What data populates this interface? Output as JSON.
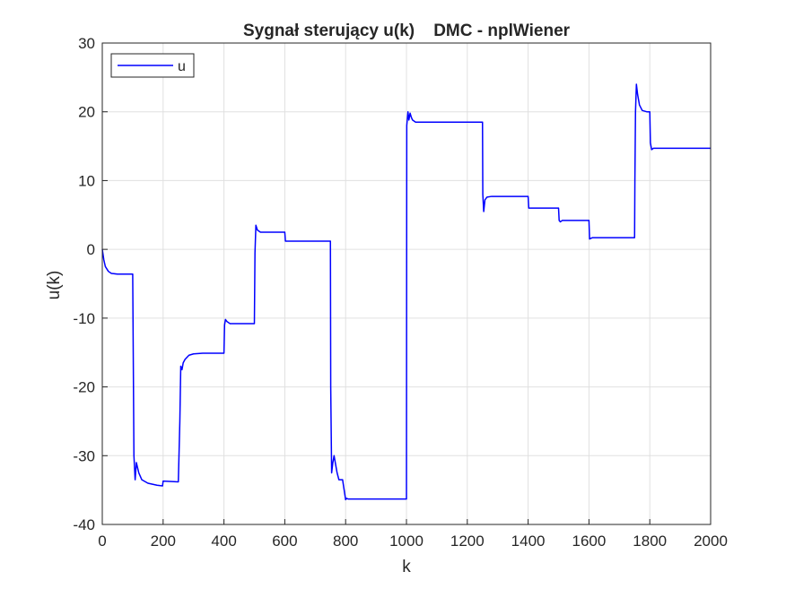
{
  "chart_data": {
    "type": "line",
    "title": "Sygnał sterujący u(k)    DMC - nplWiener",
    "xlabel": "k",
    "ylabel": "u(k)",
    "xlim": [
      0,
      2000
    ],
    "ylim": [
      -40,
      30
    ],
    "xticks": [
      0,
      200,
      400,
      600,
      800,
      1000,
      1200,
      1400,
      1600,
      1800,
      2000
    ],
    "yticks": [
      -40,
      -30,
      -20,
      -10,
      0,
      10,
      20,
      30
    ],
    "grid": true,
    "legend_position": "top-left",
    "colors": {
      "series": "#0000ff",
      "grid": "#e0e0e0",
      "axis": "#262626"
    },
    "series": [
      {
        "name": "u",
        "x": [
          0,
          5,
          10,
          20,
          30,
          50,
          100,
          101,
          104,
          108,
          112,
          120,
          130,
          150,
          180,
          198,
          200,
          250,
          255,
          258,
          262,
          266,
          272,
          285,
          300,
          330,
          350,
          400,
          402,
          405,
          410,
          420,
          450,
          500,
          502,
          505,
          510,
          520,
          600,
          602,
          605,
          750,
          751,
          754,
          758,
          762,
          766,
          772,
          778,
          782,
          790,
          800,
          803,
          808,
          830,
          1000,
          1001,
          1005,
          1008,
          1012,
          1016,
          1020,
          1030,
          1060,
          1100,
          1250,
          1251,
          1254,
          1258,
          1265,
          1280,
          1300,
          1400,
          1402,
          1410,
          1500,
          1502,
          1506,
          1512,
          1600,
          1602,
          1606,
          1612,
          1700,
          1750,
          1751,
          1753,
          1756,
          1760,
          1766,
          1775,
          1790,
          1800,
          1802,
          1806,
          1812,
          1830,
          1870,
          2000
        ],
        "y": [
          0,
          -1.5,
          -2.5,
          -3.2,
          -3.5,
          -3.6,
          -3.6,
          -10,
          -30,
          -33.5,
          -31,
          -32.5,
          -33.5,
          -34,
          -34.3,
          -34.4,
          -33.7,
          -33.8,
          -25,
          -17,
          -17.5,
          -16.5,
          -16,
          -15.4,
          -15.2,
          -15.1,
          -15.1,
          -15.1,
          -11,
          -10.2,
          -10.5,
          -10.8,
          -10.8,
          -10.8,
          -0.5,
          3.5,
          2.8,
          2.5,
          2.5,
          1.2,
          1.2,
          1.2,
          -20,
          -32.5,
          -31,
          -30,
          -31,
          -32.5,
          -33.5,
          -33.5,
          -33.5,
          -36.4,
          -36.2,
          -36.3,
          -36.3,
          -36.3,
          18,
          20,
          18.8,
          19.8,
          19.2,
          18.8,
          18.5,
          18.5,
          18.5,
          18.5,
          8,
          5.5,
          7.2,
          7.6,
          7.7,
          7.7,
          7.7,
          6,
          6,
          6,
          4.2,
          4,
          4.2,
          4.2,
          1.5,
          1.6,
          1.7,
          1.7,
          1.7,
          10,
          20,
          24,
          22.5,
          21,
          20.2,
          20,
          20,
          15.5,
          14.5,
          14.7,
          14.7,
          14.7,
          14.7
        ]
      }
    ]
  }
}
